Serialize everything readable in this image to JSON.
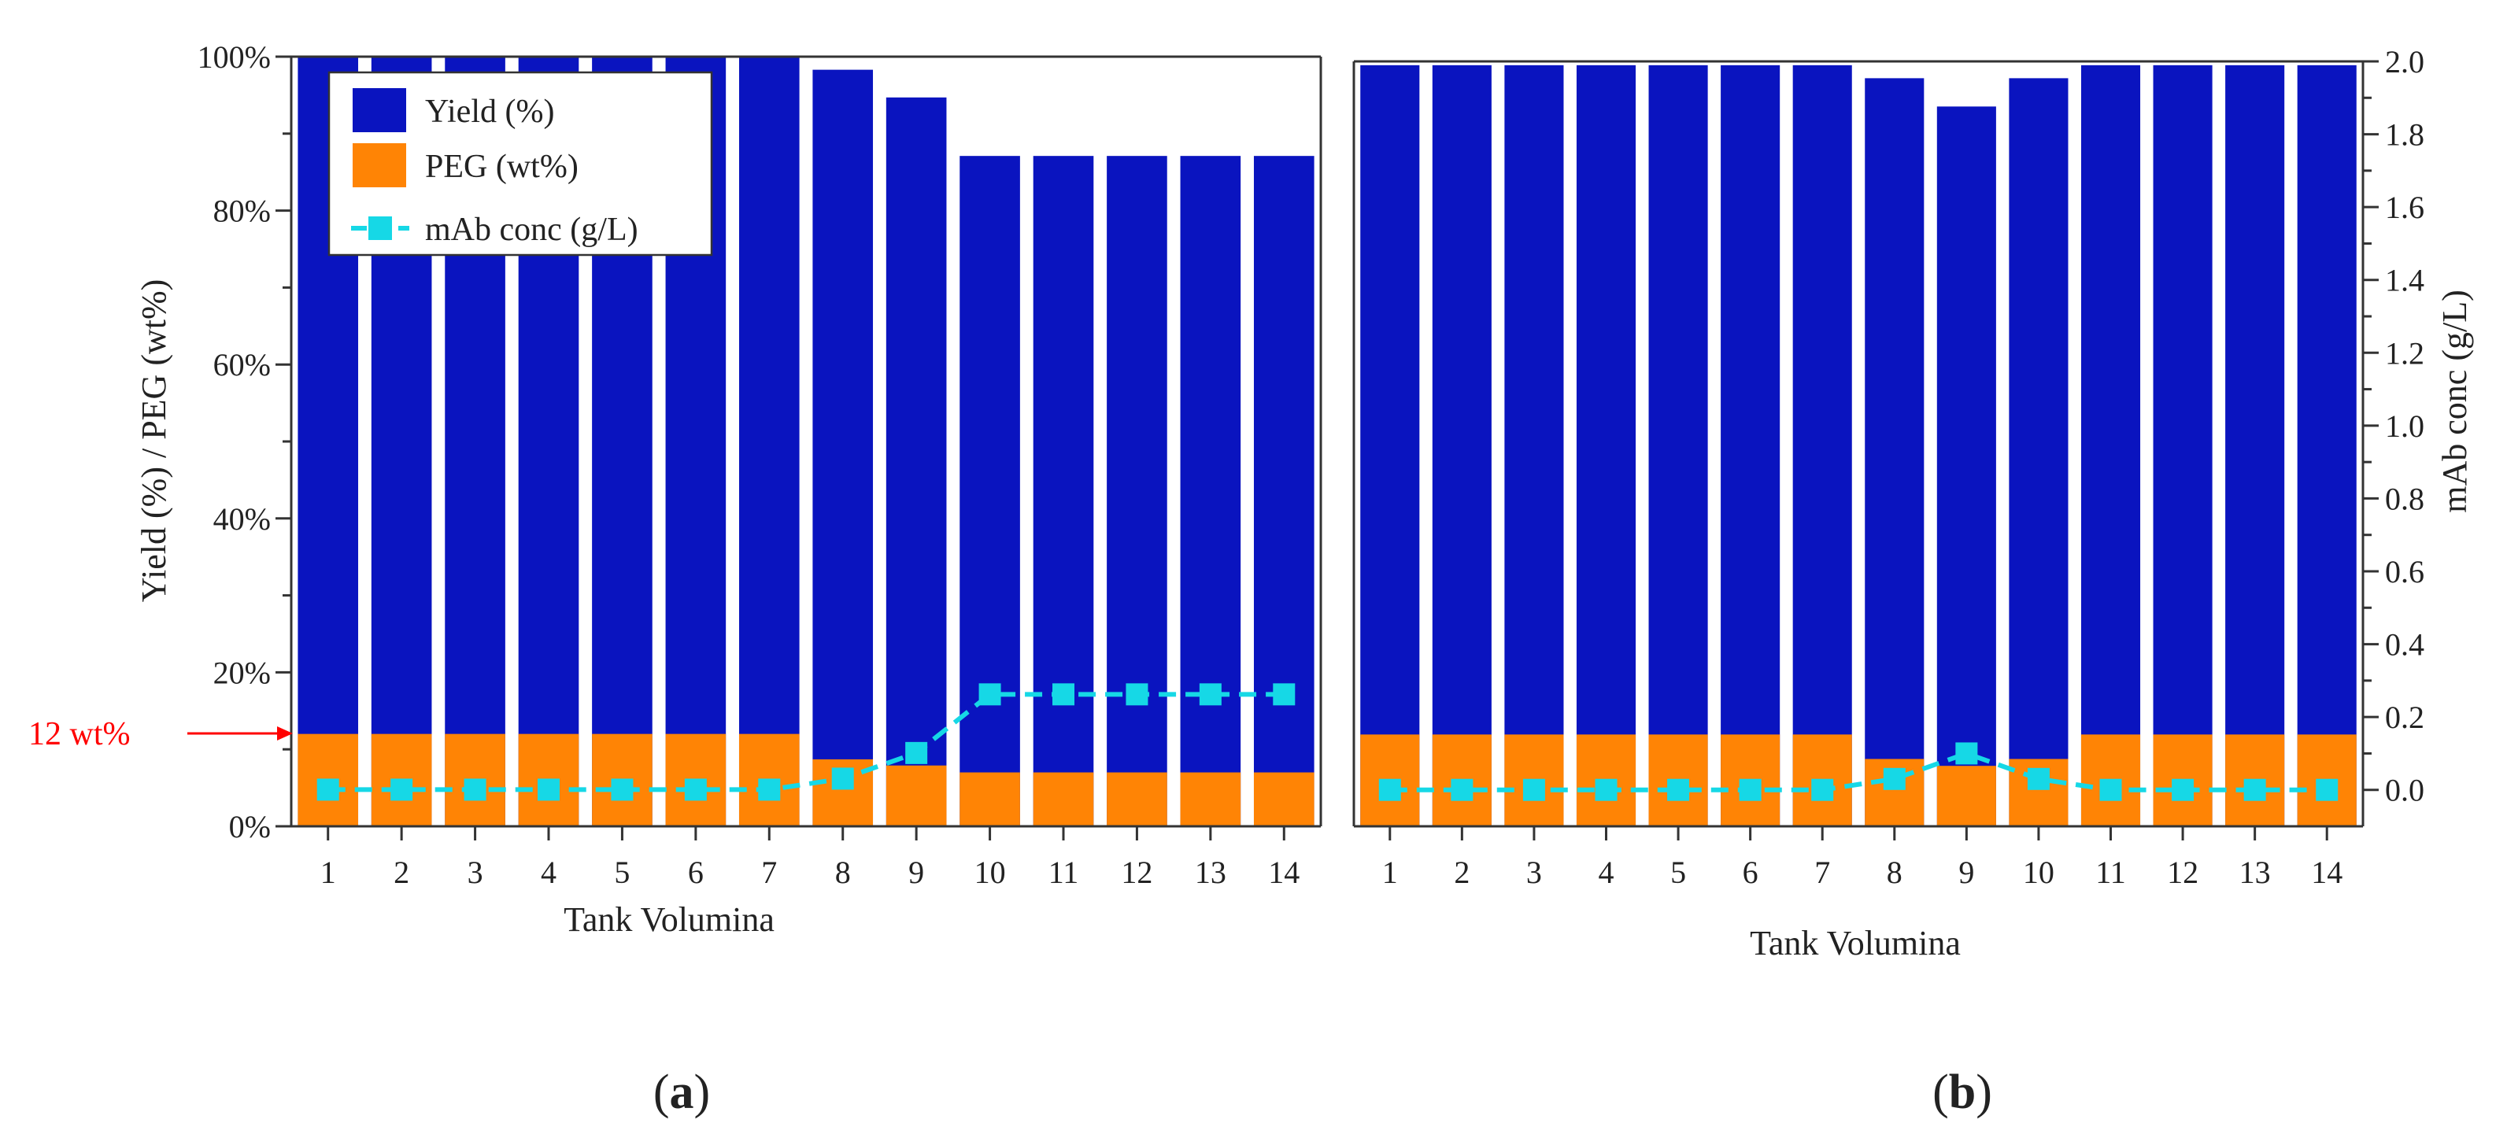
{
  "chart_data": [
    {
      "type": "bar",
      "panel_label": "(a)",
      "panel_letter": "a",
      "stacking": "overlay",
      "categories": [
        "1",
        "2",
        "3",
        "4",
        "5",
        "6",
        "7",
        "8",
        "9",
        "10",
        "11",
        "12",
        "13",
        "14"
      ],
      "series": [
        {
          "name": "Yield (%)",
          "axis": "left",
          "kind": "bar",
          "color": "#0a14bf",
          "values": [
            100,
            100,
            100,
            100,
            100,
            100,
            100,
            98.3,
            94.7,
            87.1,
            87.1,
            87.1,
            87.1,
            87.1
          ]
        },
        {
          "name": "PEG (wt%)",
          "axis": "left",
          "kind": "bar",
          "color": "#ff8405",
          "values": [
            12,
            12,
            12,
            12,
            12,
            12,
            12,
            8.7,
            7.9,
            7.0,
            7.0,
            7.0,
            7.0,
            7.0
          ]
        },
        {
          "name": "mAb conc (g/L)",
          "axis": "right",
          "kind": "line",
          "marker": "square",
          "dash": "dashed",
          "color": "#16d8e6",
          "values": [
            0,
            0,
            0,
            0,
            0,
            0,
            0,
            0.03,
            0.1,
            0.26,
            0.26,
            0.26,
            0.26,
            0.26
          ]
        }
      ],
      "xlabel": "Tank Volumina",
      "ylabel": "Yield (%)  /  PEG (wt%)",
      "ylim": [
        0,
        100
      ],
      "yticks": [
        "0%",
        "20%",
        "40%",
        "60%",
        "80%",
        "100%"
      ],
      "y2lim": [
        -0.1,
        2.0
      ],
      "legend": [
        "Yield (%)",
        "PEG (wt%)",
        "mAb conc (g/L)"
      ],
      "legend_position": "top-left",
      "annotation": {
        "text": "12 wt%",
        "color": "#ff0000",
        "value": 12
      }
    },
    {
      "type": "bar",
      "panel_label": "(b)",
      "panel_letter": "b",
      "stacking": "overlay",
      "categories": [
        "1",
        "2",
        "3",
        "4",
        "5",
        "6",
        "7",
        "8",
        "9",
        "10",
        "11",
        "12",
        "13",
        "14"
      ],
      "series": [
        {
          "name": "Yield (%)",
          "axis": "left",
          "kind": "bar",
          "color": "#0a14bf",
          "values": [
            99.5,
            99.5,
            99.5,
            99.5,
            99.5,
            99.5,
            99.5,
            97.8,
            94.1,
            97.8,
            99.5,
            99.5,
            99.5,
            99.5
          ]
        },
        {
          "name": "PEG (wt%)",
          "axis": "left",
          "kind": "bar",
          "color": "#ff8405",
          "values": [
            12,
            12,
            12,
            12,
            12,
            12,
            12,
            8.8,
            7.9,
            8.8,
            12,
            12,
            12,
            12
          ]
        },
        {
          "name": "mAb conc (g/L)",
          "axis": "right",
          "kind": "line",
          "marker": "square",
          "dash": "dashed",
          "color": "#16d8e6",
          "values": [
            0,
            0,
            0,
            0,
            0,
            0,
            0,
            0.03,
            0.1,
            0.03,
            0,
            0,
            0,
            0
          ]
        }
      ],
      "xlabel": "Tank Volumina",
      "ylabel": "mAb conc (g/L)",
      "ylim": [
        0,
        100
      ],
      "y2lim": [
        -0.1,
        2.0
      ],
      "y2ticks": [
        "0.0",
        "0.2",
        "0.4",
        "0.6",
        "0.8",
        "1.0",
        "1.2",
        "1.4",
        "1.6",
        "1.8",
        "2.0"
      ]
    }
  ]
}
